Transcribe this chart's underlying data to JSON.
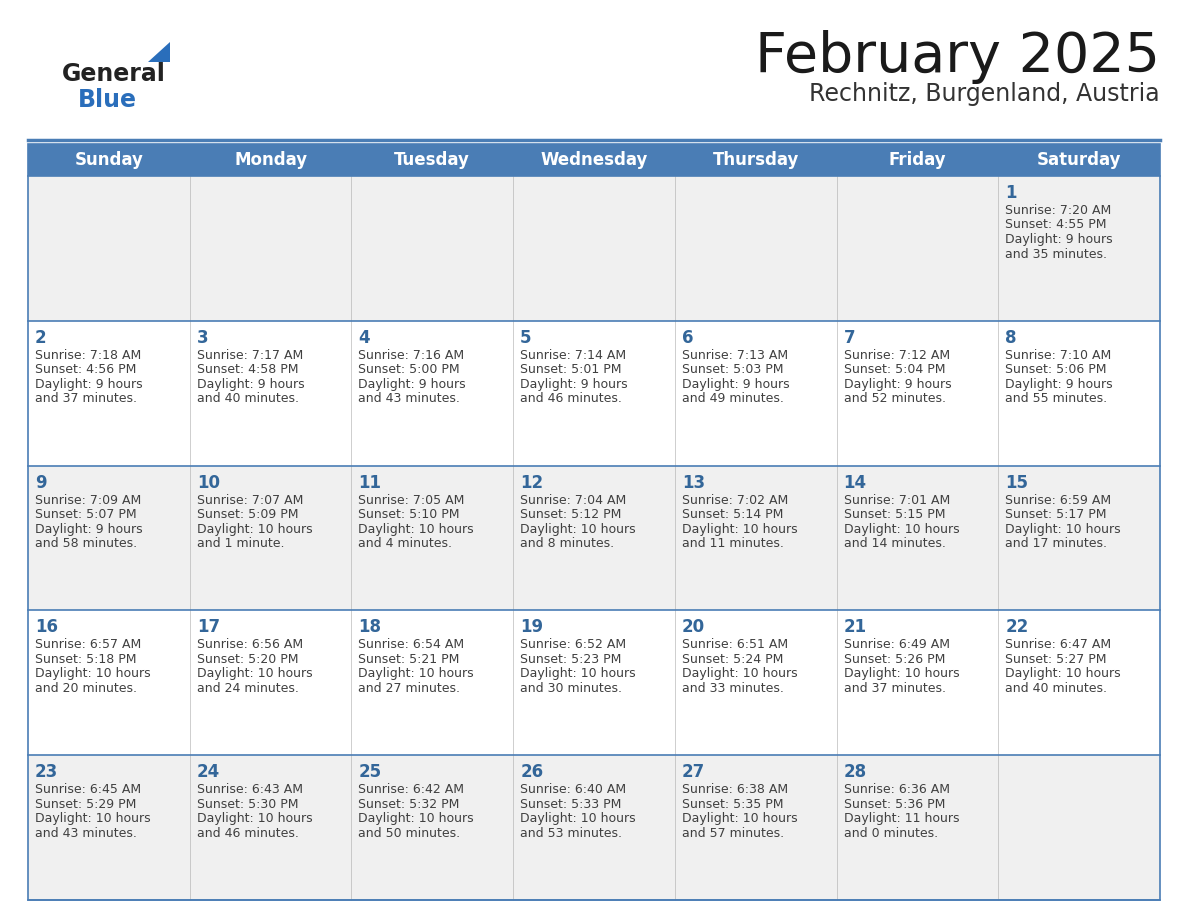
{
  "title": "February 2025",
  "subtitle": "Rechnitz, Burgenland, Austria",
  "days_of_week": [
    "Sunday",
    "Monday",
    "Tuesday",
    "Wednesday",
    "Thursday",
    "Friday",
    "Saturday"
  ],
  "header_bg": "#4a7db5",
  "header_text": "#ffffff",
  "row_bg_even": "#f0f0f0",
  "row_bg_odd": "#ffffff",
  "day_number_color": "#336699",
  "text_color": "#404040",
  "border_color": "#4a7db5",
  "logo_general_color": "#222222",
  "logo_blue_color": "#2a6ebb",
  "logo_triangle_color": "#2a6ebb",
  "calendar_data": [
    [
      null,
      null,
      null,
      null,
      null,
      null,
      {
        "day": "1",
        "sunrise": "7:20 AM",
        "sunset": "4:55 PM",
        "daylight": "9 hours and 35 minutes."
      }
    ],
    [
      {
        "day": "2",
        "sunrise": "7:18 AM",
        "sunset": "4:56 PM",
        "daylight": "9 hours and 37 minutes."
      },
      {
        "day": "3",
        "sunrise": "7:17 AM",
        "sunset": "4:58 PM",
        "daylight": "9 hours and 40 minutes."
      },
      {
        "day": "4",
        "sunrise": "7:16 AM",
        "sunset": "5:00 PM",
        "daylight": "9 hours and 43 minutes."
      },
      {
        "day": "5",
        "sunrise": "7:14 AM",
        "sunset": "5:01 PM",
        "daylight": "9 hours and 46 minutes."
      },
      {
        "day": "6",
        "sunrise": "7:13 AM",
        "sunset": "5:03 PM",
        "daylight": "9 hours and 49 minutes."
      },
      {
        "day": "7",
        "sunrise": "7:12 AM",
        "sunset": "5:04 PM",
        "daylight": "9 hours and 52 minutes."
      },
      {
        "day": "8",
        "sunrise": "7:10 AM",
        "sunset": "5:06 PM",
        "daylight": "9 hours and 55 minutes."
      }
    ],
    [
      {
        "day": "9",
        "sunrise": "7:09 AM",
        "sunset": "5:07 PM",
        "daylight": "9 hours and 58 minutes."
      },
      {
        "day": "10",
        "sunrise": "7:07 AM",
        "sunset": "5:09 PM",
        "daylight": "10 hours and 1 minute."
      },
      {
        "day": "11",
        "sunrise": "7:05 AM",
        "sunset": "5:10 PM",
        "daylight": "10 hours and 4 minutes."
      },
      {
        "day": "12",
        "sunrise": "7:04 AM",
        "sunset": "5:12 PM",
        "daylight": "10 hours and 8 minutes."
      },
      {
        "day": "13",
        "sunrise": "7:02 AM",
        "sunset": "5:14 PM",
        "daylight": "10 hours and 11 minutes."
      },
      {
        "day": "14",
        "sunrise": "7:01 AM",
        "sunset": "5:15 PM",
        "daylight": "10 hours and 14 minutes."
      },
      {
        "day": "15",
        "sunrise": "6:59 AM",
        "sunset": "5:17 PM",
        "daylight": "10 hours and 17 minutes."
      }
    ],
    [
      {
        "day": "16",
        "sunrise": "6:57 AM",
        "sunset": "5:18 PM",
        "daylight": "10 hours and 20 minutes."
      },
      {
        "day": "17",
        "sunrise": "6:56 AM",
        "sunset": "5:20 PM",
        "daylight": "10 hours and 24 minutes."
      },
      {
        "day": "18",
        "sunrise": "6:54 AM",
        "sunset": "5:21 PM",
        "daylight": "10 hours and 27 minutes."
      },
      {
        "day": "19",
        "sunrise": "6:52 AM",
        "sunset": "5:23 PM",
        "daylight": "10 hours and 30 minutes."
      },
      {
        "day": "20",
        "sunrise": "6:51 AM",
        "sunset": "5:24 PM",
        "daylight": "10 hours and 33 minutes."
      },
      {
        "day": "21",
        "sunrise": "6:49 AM",
        "sunset": "5:26 PM",
        "daylight": "10 hours and 37 minutes."
      },
      {
        "day": "22",
        "sunrise": "6:47 AM",
        "sunset": "5:27 PM",
        "daylight": "10 hours and 40 minutes."
      }
    ],
    [
      {
        "day": "23",
        "sunrise": "6:45 AM",
        "sunset": "5:29 PM",
        "daylight": "10 hours and 43 minutes."
      },
      {
        "day": "24",
        "sunrise": "6:43 AM",
        "sunset": "5:30 PM",
        "daylight": "10 hours and 46 minutes."
      },
      {
        "day": "25",
        "sunrise": "6:42 AM",
        "sunset": "5:32 PM",
        "daylight": "10 hours and 50 minutes."
      },
      {
        "day": "26",
        "sunrise": "6:40 AM",
        "sunset": "5:33 PM",
        "daylight": "10 hours and 53 minutes."
      },
      {
        "day": "27",
        "sunrise": "6:38 AM",
        "sunset": "5:35 PM",
        "daylight": "10 hours and 57 minutes."
      },
      {
        "day": "28",
        "sunrise": "6:36 AM",
        "sunset": "5:36 PM",
        "daylight": "11 hours and 0 minutes."
      },
      null
    ]
  ]
}
